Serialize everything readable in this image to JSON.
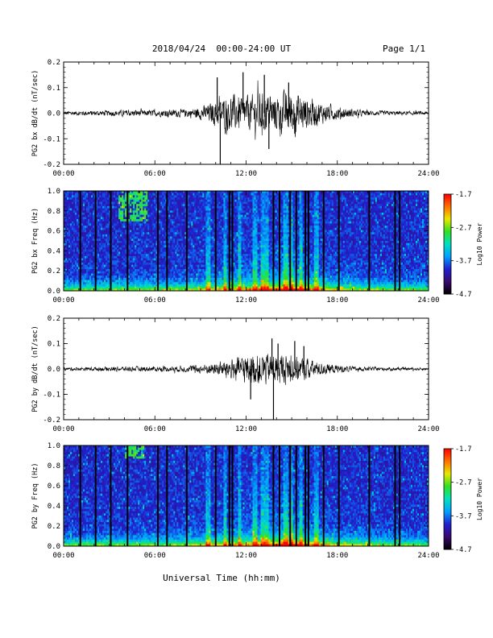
{
  "header": {
    "title": "2018/04/24  00:00-24:00 UT",
    "page": "Page 1/1"
  },
  "footer": {
    "xlabel": "Universal Time (hh:mm)"
  },
  "colorbar": {
    "label": "Log10 Power",
    "ticks": [
      "-1.7",
      "-2.7",
      "-3.7",
      "-4.7"
    ],
    "colors": [
      "#000000",
      "#3a0a6e",
      "#2020d0",
      "#00a0ff",
      "#00e0c0",
      "#30e020",
      "#e8e800",
      "#ff7000",
      "#ff0000"
    ]
  },
  "chart_data": [
    {
      "type": "line",
      "title": "",
      "ylabel": "PG2 bx dB/dt (nT/sec)",
      "xlabel": "",
      "xlim": [
        0,
        24
      ],
      "ylim": [
        -0.2,
        0.2
      ],
      "xticks": [
        "00:00",
        "06:00",
        "12:00",
        "18:00",
        "24:00"
      ],
      "yticks": [
        "0.2",
        "0.1",
        "0.0",
        "-0.1",
        "-0.2"
      ],
      "envelope": {
        "t": [
          0,
          2,
          4,
          6,
          8,
          9,
          10,
          11,
          12,
          13,
          14,
          15,
          16,
          17,
          18,
          19,
          20,
          22,
          24
        ],
        "amp": [
          0.01,
          0.012,
          0.015,
          0.015,
          0.02,
          0.03,
          0.06,
          0.09,
          0.08,
          0.1,
          0.09,
          0.11,
          0.08,
          0.05,
          0.03,
          0.02,
          0.012,
          0.01,
          0.008
        ]
      },
      "peaks": [
        {
          "t": 10.3,
          "y": -0.2
        },
        {
          "t": 10.1,
          "y": 0.14
        },
        {
          "t": 11.8,
          "y": 0.16
        },
        {
          "t": 13.5,
          "y": -0.14
        },
        {
          "t": 13.2,
          "y": 0.15
        },
        {
          "t": 14.8,
          "y": 0.12
        },
        {
          "t": 15.2,
          "y": -0.08
        }
      ]
    },
    {
      "type": "heatmap",
      "title": "",
      "ylabel": "PG2 bx Freq (Hz)",
      "xlabel": "",
      "xlim": [
        0,
        24
      ],
      "ylim": [
        0.0,
        1.0
      ],
      "xticks": [
        "00:00",
        "06:00",
        "12:00",
        "18:00",
        "24:00"
      ],
      "yticks": [
        "1.0",
        "0.8",
        "0.6",
        "0.4",
        "0.2",
        "0.0"
      ],
      "zlim": [
        -4.7,
        -1.7
      ],
      "dark_columns_hours": [
        1.1,
        2.1,
        3.1,
        4.2,
        6.2,
        6.8,
        8.1,
        10.0,
        10.9,
        11.1,
        13.8,
        14.2,
        14.9,
        15.3,
        15.9,
        16.1,
        17.1,
        18.1,
        20.1,
        21.8,
        22.1
      ],
      "bright_columns_hours": [
        9.5,
        10.6,
        11.6,
        12.6,
        13.1,
        13.4,
        14.6,
        15.0,
        15.6,
        16.6
      ],
      "activity": {
        "t": [
          0,
          2,
          4,
          6,
          8,
          10,
          11,
          12,
          13,
          14,
          15,
          16,
          17,
          18,
          20,
          22,
          24
        ],
        "level": [
          0.15,
          0.18,
          0.22,
          0.2,
          0.25,
          0.4,
          0.5,
          0.5,
          0.6,
          0.65,
          0.9,
          0.6,
          0.45,
          0.35,
          0.25,
          0.2,
          0.15
        ]
      },
      "hot_spot": {
        "t": [
          3.6,
          5.5
        ],
        "f": [
          0.7,
          1.0
        ]
      }
    },
    {
      "type": "line",
      "title": "",
      "ylabel": "PG2 by dB/dt (nT/sec)",
      "xlabel": "",
      "xlim": [
        0,
        24
      ],
      "ylim": [
        -0.2,
        0.2
      ],
      "xticks": [
        "00:00",
        "06:00",
        "12:00",
        "18:00",
        "24:00"
      ],
      "yticks": [
        "0.2",
        "0.1",
        "0.0",
        "-0.1",
        "-0.2"
      ],
      "envelope": {
        "t": [
          0,
          2,
          4,
          6,
          8,
          9,
          10,
          11,
          12,
          13,
          14,
          15,
          16,
          17,
          18,
          19,
          20,
          22,
          24
        ],
        "amp": [
          0.008,
          0.01,
          0.012,
          0.012,
          0.015,
          0.02,
          0.03,
          0.05,
          0.07,
          0.08,
          0.07,
          0.07,
          0.05,
          0.03,
          0.02,
          0.012,
          0.01,
          0.008,
          0.006
        ]
      },
      "peaks": [
        {
          "t": 13.8,
          "y": -0.2
        },
        {
          "t": 13.7,
          "y": 0.12
        },
        {
          "t": 14.1,
          "y": 0.1
        },
        {
          "t": 15.2,
          "y": 0.11
        },
        {
          "t": 12.3,
          "y": -0.12
        },
        {
          "t": 15.8,
          "y": 0.09
        }
      ]
    },
    {
      "type": "heatmap",
      "title": "",
      "ylabel": "PG2 by Freq (Hz)",
      "xlabel": "",
      "xlim": [
        0,
        24
      ],
      "ylim": [
        0.0,
        1.0
      ],
      "xticks": [
        "00:00",
        "06:00",
        "12:00",
        "18:00",
        "24:00"
      ],
      "yticks": [
        "1.0",
        "0.8",
        "0.6",
        "0.4",
        "0.2",
        "0.0"
      ],
      "zlim": [
        -4.7,
        -1.7
      ],
      "dark_columns_hours": [
        1.1,
        2.1,
        3.1,
        4.2,
        6.2,
        6.8,
        8.1,
        10.0,
        10.9,
        11.1,
        13.8,
        14.2,
        14.9,
        15.3,
        15.9,
        16.1,
        17.1,
        18.1,
        20.1,
        21.8,
        22.1
      ],
      "bright_columns_hours": [
        9.5,
        10.6,
        11.6,
        12.6,
        13.1,
        13.4,
        14.6,
        15.0,
        15.6,
        16.6
      ],
      "activity": {
        "t": [
          0,
          2,
          4,
          6,
          8,
          10,
          11,
          12,
          13,
          14,
          15,
          16,
          17,
          18,
          20,
          22,
          24
        ],
        "level": [
          0.15,
          0.18,
          0.22,
          0.2,
          0.25,
          0.4,
          0.5,
          0.5,
          0.6,
          0.65,
          0.9,
          0.6,
          0.45,
          0.35,
          0.25,
          0.2,
          0.15
        ]
      },
      "hot_spot": {
        "t": [
          4.0,
          5.3
        ],
        "f": [
          0.88,
          1.0
        ]
      }
    }
  ]
}
